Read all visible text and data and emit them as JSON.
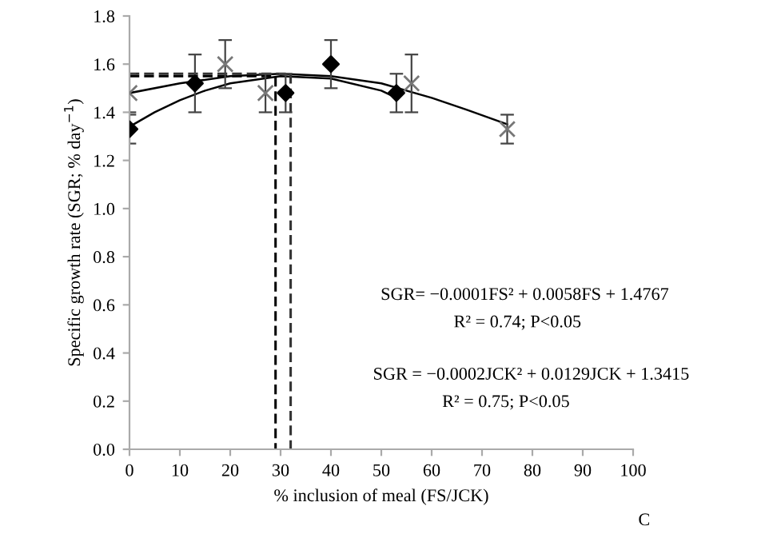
{
  "chart_data": {
    "type": "scatter",
    "xlabel": "% inclusion of meal (FS/JCK)",
    "ylabel": "Specific growth rate (SGR; % day$^{−1}$)",
    "xlim": [
      0,
      100
    ],
    "xticks": [
      0,
      10,
      20,
      30,
      40,
      50,
      60,
      70,
      80,
      90,
      100
    ],
    "ylim": [
      0,
      1.8
    ],
    "yticks": [
      {
        "value": 0,
        "label": "0.0"
      },
      {
        "value": 0.2,
        "label": "0.2"
      },
      {
        "value": 0.4,
        "label": "0.4"
      },
      {
        "value": 0.6,
        "label": "0.6"
      },
      {
        "value": 0.8,
        "label": "0.8"
      },
      {
        "value": 1.0,
        "label": "1.0"
      },
      {
        "value": 1.2,
        "label": "1.2"
      },
      {
        "value": 1.4,
        "label": "1.4"
      },
      {
        "value": 1.6,
        "label": "1.6"
      },
      {
        "value": 1.8,
        "label": "1.8"
      }
    ],
    "grid": false,
    "legend": false,
    "series": [
      {
        "type": "line",
        "color": "#000000",
        "marker": "none",
        "line_style": "solid",
        "x": [
          0,
          10,
          20,
          30,
          40,
          50,
          60,
          67,
          75
        ],
        "values": [
          1.48,
          1.52,
          1.55,
          1.56,
          1.55,
          1.52,
          1.46,
          1.41,
          1.35
        ]
      },
      {
        "type": "line",
        "color": "#000000",
        "marker": "none",
        "line_style": "solid",
        "x": [
          0,
          5,
          10,
          15,
          20,
          30,
          40,
          50,
          53
        ],
        "values": [
          1.34,
          1.4,
          1.45,
          1.49,
          1.52,
          1.55,
          1.54,
          1.49,
          1.46
        ]
      },
      {
        "type": "line",
        "color": "#000000",
        "marker": "none",
        "line_style": "dashed",
        "x": [
          0,
          29,
          29
        ],
        "values": [
          1.55,
          1.55,
          0
        ]
      },
      {
        "type": "line",
        "color": "#333333",
        "marker": "none",
        "line_style": "dashed",
        "x": [
          0,
          32,
          32
        ],
        "values": [
          1.56,
          1.56,
          0
        ]
      },
      {
        "color": "#777777",
        "marker": "cross",
        "x": [
          0,
          19,
          27,
          56,
          75
        ],
        "values": [
          1.48,
          1.6,
          1.48,
          1.52,
          1.33
        ],
        "errors": [
          0.08,
          0.1,
          0.08,
          0.12,
          0.06
        ]
      },
      {
        "color": "#000000",
        "marker": "diamond",
        "x": [
          0,
          13,
          31,
          40,
          53
        ],
        "values": [
          1.33,
          1.52,
          1.48,
          1.6,
          1.48
        ],
        "errors": [
          0.06,
          0.12,
          0.08,
          0.1,
          0.08
        ]
      }
    ],
    "annotations": [
      "SGR= −0.0001FS² + 0.0058FS + 1.4767",
      "R² = 0.74; P<0.05",
      "SGR = −0.0002JCK² + 0.0129JCK + 1.3415",
      "R² = 0.75; P<0.05",
      "C"
    ]
  }
}
